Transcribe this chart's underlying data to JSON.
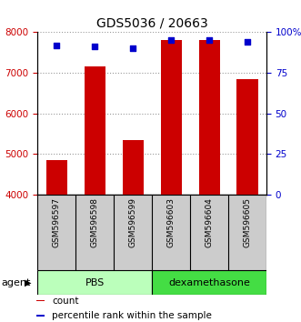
{
  "title": "GDS5036 / 20663",
  "samples": [
    "GSM596597",
    "GSM596598",
    "GSM596599",
    "GSM596603",
    "GSM596604",
    "GSM596605"
  ],
  "counts": [
    4850,
    7150,
    5350,
    7800,
    7800,
    6850
  ],
  "percentiles": [
    92,
    91,
    90,
    95,
    95,
    94
  ],
  "ylim_left": [
    4000,
    8000
  ],
  "ylim_right": [
    0,
    100
  ],
  "yticks_left": [
    4000,
    5000,
    6000,
    7000,
    8000
  ],
  "yticks_right": [
    0,
    25,
    50,
    75,
    100
  ],
  "bar_color": "#cc0000",
  "scatter_color": "#0000cc",
  "bar_width": 0.55,
  "groups": [
    {
      "label": "PBS",
      "samples": [
        0,
        1,
        2
      ],
      "color": "#bbffbb"
    },
    {
      "label": "dexamethasone",
      "samples": [
        3,
        4,
        5
      ],
      "color": "#44dd44"
    }
  ],
  "agent_label": "agent",
  "grid_color": "#999999",
  "legend_items": [
    {
      "label": "count",
      "color": "#cc0000"
    },
    {
      "label": "percentile rank within the sample",
      "color": "#0000cc"
    }
  ],
  "tick_label_color_left": "#cc0000",
  "tick_label_color_right": "#0000cc",
  "sample_cell_color": "#cccccc",
  "title_fontsize": 10
}
